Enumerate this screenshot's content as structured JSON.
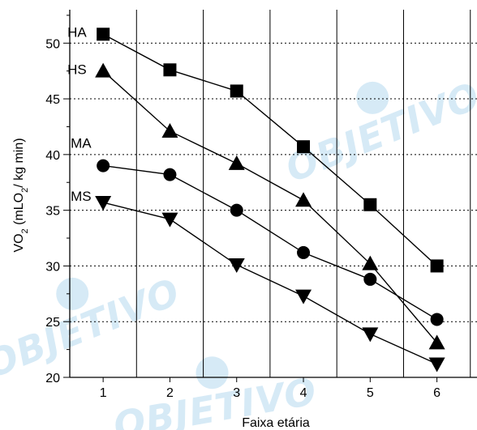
{
  "watermark": {
    "text": "OBJETIVO"
  },
  "chart_data": {
    "type": "line",
    "xlabel": "Faixa etária",
    "ylabel_parts": [
      "VO",
      "2",
      " (mLO",
      "2",
      "/ kg min)"
    ],
    "x": [
      1,
      2,
      3,
      4,
      5,
      6
    ],
    "xlim": [
      0.5,
      6.6
    ],
    "ylim": [
      20,
      53
    ],
    "xticks": [
      1,
      2,
      3,
      4,
      5,
      6
    ],
    "yticks": [
      20,
      25,
      30,
      35,
      40,
      45,
      50
    ],
    "grid": {
      "x": "solid",
      "y": "dotted"
    },
    "series": [
      {
        "name": "HA",
        "marker": "square",
        "values": [
          50.8,
          47.6,
          45.7,
          40.7,
          35.5,
          30.0
        ]
      },
      {
        "name": "HS",
        "marker": "triangle",
        "values": [
          47.5,
          42.1,
          39.2,
          35.9,
          30.2,
          23.1
        ]
      },
      {
        "name": "MA",
        "marker": "circle",
        "values": [
          39.0,
          38.2,
          35.0,
          31.2,
          28.8,
          25.2
        ]
      },
      {
        "name": "MS",
        "marker": "triangle-down",
        "values": [
          35.7,
          34.2,
          30.1,
          27.3,
          23.9,
          21.2
        ]
      }
    ]
  }
}
